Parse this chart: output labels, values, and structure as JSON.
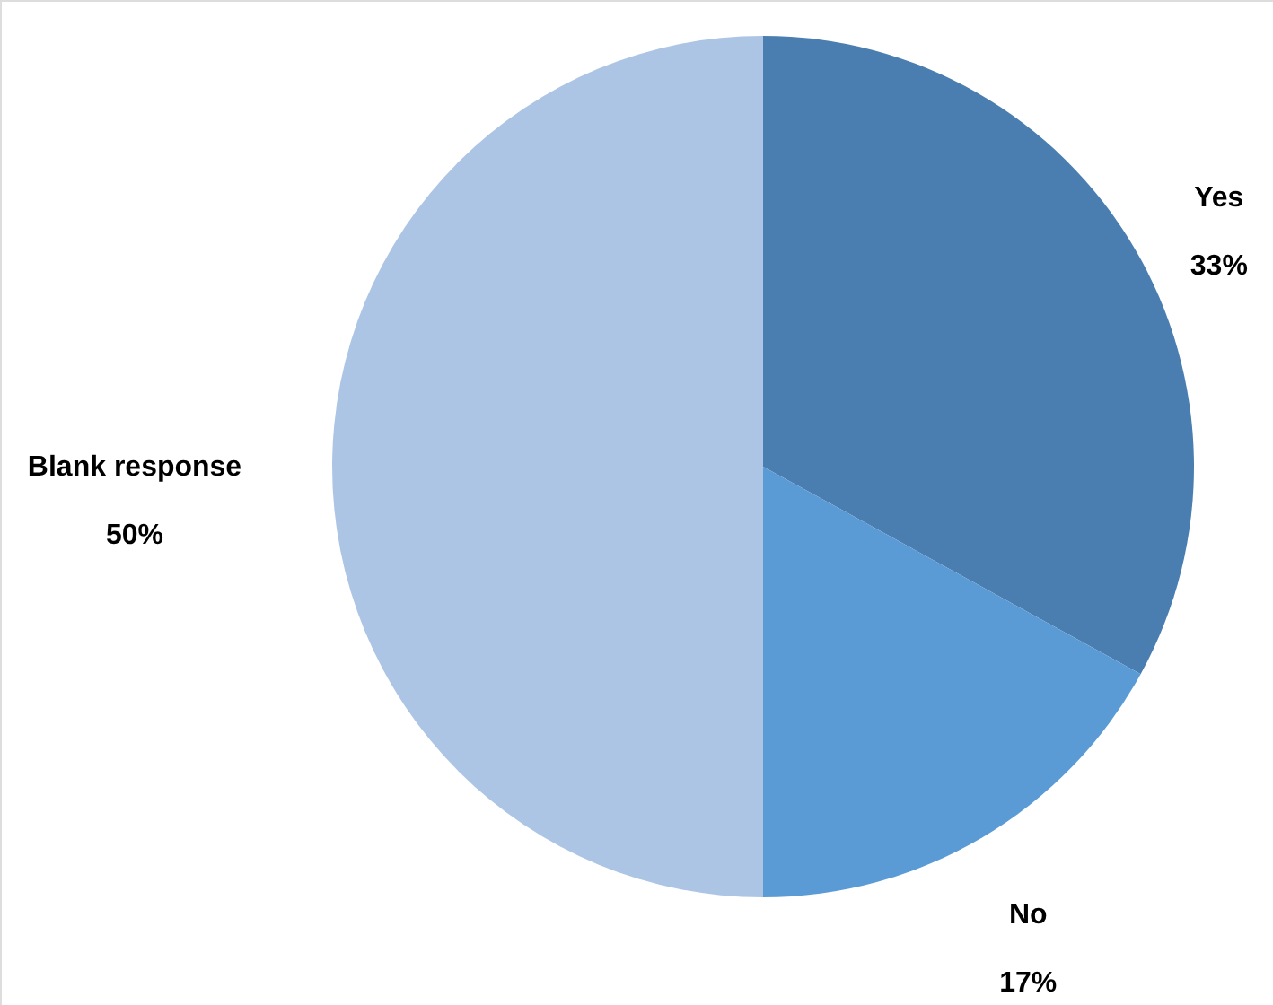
{
  "chart_data": {
    "type": "pie",
    "categories": [
      "Yes",
      "No",
      "Blank response"
    ],
    "values": [
      33,
      17,
      50
    ],
    "colors": [
      "#4a7eb0",
      "#5b9bd5",
      "#adc5e5"
    ],
    "value_labels": [
      "33%",
      "17%",
      "50%"
    ]
  }
}
